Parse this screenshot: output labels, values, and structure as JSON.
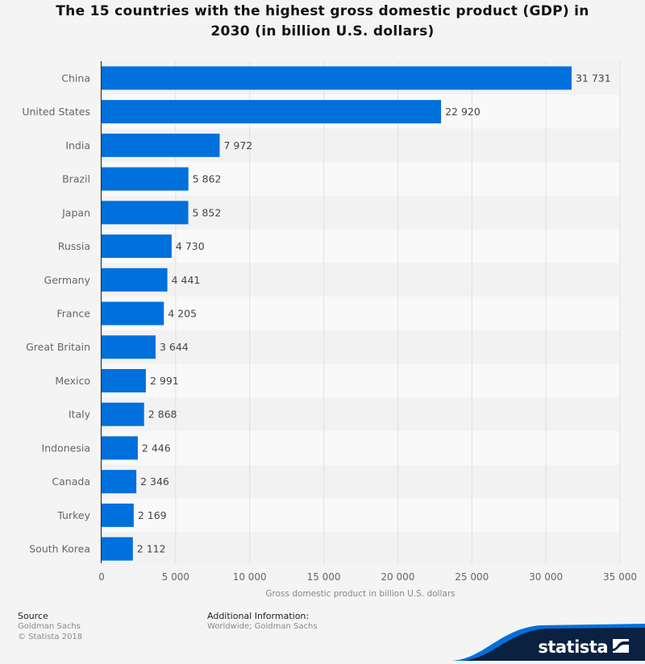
{
  "chart_data": {
    "type": "bar",
    "orientation": "horizontal",
    "title": "The 15 countries with the highest gross domestic product (GDP) in 2030 (in billion U.S. dollars)",
    "title_lines": [
      "The 15 countries with the highest gross domestic product (GDP) in",
      "2030 (in billion U.S. dollars)"
    ],
    "categories": [
      "China",
      "United States",
      "India",
      "Brazil",
      "Japan",
      "Russia",
      "Germany",
      "France",
      "Great Britain",
      "Mexico",
      "Italy",
      "Indonesia",
      "Canada",
      "Turkey",
      "South Korea"
    ],
    "values": [
      31731,
      22920,
      7972,
      5862,
      5852,
      4730,
      4441,
      4205,
      3644,
      2991,
      2868,
      2446,
      2346,
      2169,
      2112
    ],
    "value_labels": [
      "31 731",
      "22 920",
      "7 972",
      "5 862",
      "5 852",
      "4 730",
      "4 441",
      "4 205",
      "3 644",
      "2 991",
      "2 868",
      "2 446",
      "2 346",
      "2 169",
      "2 112"
    ],
    "xlabel": "Gross domestic product in billion U.S. dollars",
    "ylabel": "",
    "xlim": [
      0,
      35000
    ],
    "x_ticks": [
      0,
      5000,
      10000,
      15000,
      20000,
      25000,
      30000,
      35000
    ],
    "x_tick_labels": [
      "0",
      "5 000",
      "10 000",
      "15 000",
      "20 000",
      "25 000",
      "30 000",
      "35 000"
    ],
    "grid": true,
    "legend": "none",
    "bar_color": "#0070dc"
  },
  "footer": {
    "source_heading": "Source",
    "source_lines": [
      "Goldman Sachs",
      "© Statista 2018"
    ],
    "additional_heading": "Additional Information:",
    "additional_text": "Worldwide; Goldman Sachs"
  },
  "brand": {
    "name": "statista",
    "dark_color": "#0a2141",
    "accent_color": "#0070dc"
  }
}
